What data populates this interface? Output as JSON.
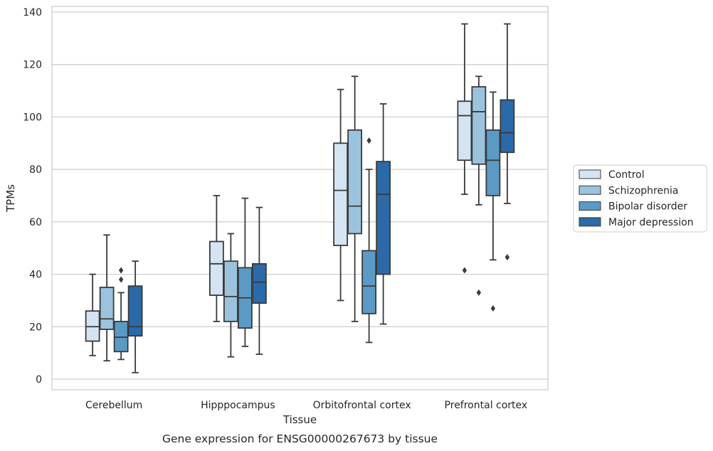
{
  "chart_data": {
    "type": "box",
    "title": "Gene expression for ENSG00000267673 by tissue",
    "xlabel": "Tissue",
    "ylabel": "TPMs",
    "ylim": [
      -4,
      142
    ],
    "yticks": [
      0,
      20,
      40,
      60,
      80,
      100,
      120,
      140
    ],
    "grid": "horizontal",
    "legend_position": "right",
    "categories": [
      "Cerebellum",
      "Hipppocampus",
      "Orbitofrontal cortex",
      "Prefrontal cortex"
    ],
    "series": [
      {
        "name": "Control",
        "color": "#d4e4f2",
        "boxes": [
          {
            "whislo": 9,
            "q1": 14.5,
            "med": 20,
            "q3": 26,
            "whishi": 40,
            "fliers": []
          },
          {
            "whislo": 22,
            "q1": 32,
            "med": 44,
            "q3": 52.5,
            "whishi": 70,
            "fliers": []
          },
          {
            "whislo": 30,
            "q1": 51,
            "med": 72,
            "q3": 90,
            "whishi": 110.5,
            "fliers": []
          },
          {
            "whislo": 70.5,
            "q1": 83.5,
            "med": 100.5,
            "q3": 106,
            "whishi": 135.5,
            "fliers": [
              41.5
            ]
          }
        ]
      },
      {
        "name": "Schizophrenia",
        "color": "#9cc3dd",
        "boxes": [
          {
            "whislo": 7,
            "q1": 19,
            "med": 23,
            "q3": 35,
            "whishi": 55,
            "fliers": []
          },
          {
            "whislo": 8.5,
            "q1": 22,
            "med": 31.5,
            "q3": 45,
            "whishi": 55.5,
            "fliers": []
          },
          {
            "whislo": 22,
            "q1": 55.5,
            "med": 66,
            "q3": 95,
            "whishi": 115.5,
            "fliers": []
          },
          {
            "whislo": 66.5,
            "q1": 82,
            "med": 102,
            "q3": 111.5,
            "whishi": 115.5,
            "fliers": [
              33
            ]
          }
        ]
      },
      {
        "name": "Bipolar disorder",
        "color": "#5b9ac5",
        "boxes": [
          {
            "whislo": 7.5,
            "q1": 10.5,
            "med": 16,
            "q3": 22,
            "whishi": 33,
            "fliers": [
              38,
              41.5
            ]
          },
          {
            "whislo": 12.5,
            "q1": 19.5,
            "med": 31,
            "q3": 42.5,
            "whishi": 69,
            "fliers": []
          },
          {
            "whislo": 14,
            "q1": 25,
            "med": 35.5,
            "q3": 49,
            "whishi": 80,
            "fliers": [
              91
            ]
          },
          {
            "whislo": 45.5,
            "q1": 70,
            "med": 83.5,
            "q3": 95,
            "whishi": 109.5,
            "fliers": [
              27
            ]
          }
        ]
      },
      {
        "name": "Major depression",
        "color": "#2a6aa8",
        "boxes": [
          {
            "whislo": 2.5,
            "q1": 16.5,
            "med": 20,
            "q3": 35.5,
            "whishi": 45,
            "fliers": []
          },
          {
            "whislo": 9.5,
            "q1": 29,
            "med": 37,
            "q3": 44,
            "whishi": 65.5,
            "fliers": []
          },
          {
            "whislo": 21,
            "q1": 40,
            "med": 70.5,
            "q3": 83,
            "whishi": 105,
            "fliers": []
          },
          {
            "whislo": 67,
            "q1": 86.5,
            "med": 94,
            "q3": 106.5,
            "whishi": 135.5,
            "fliers": [
              46.5
            ]
          }
        ]
      }
    ]
  }
}
